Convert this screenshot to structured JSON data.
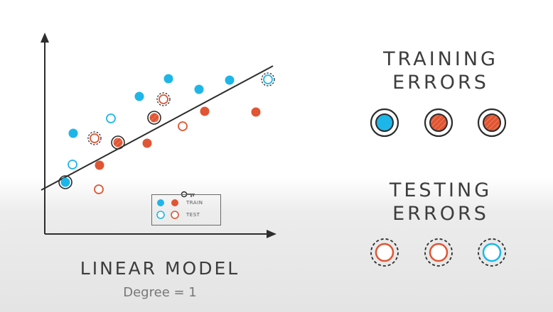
{
  "colors": {
    "train_point": "#1eb6e8",
    "test_point": "#e05533",
    "outline": "#2c2c2c",
    "axis": "#2d2d2d"
  },
  "diagram": {
    "title": "LINEAR MODEL",
    "subtitle": "Degree = 1",
    "legend": {
      "train": "TRAIN",
      "test": "TEST"
    }
  },
  "training_errors": {
    "heading_line1": "TRAINING",
    "heading_line2": "ERRORS",
    "icons": [
      "filled-blue-circle-icon",
      "filled-striped-red-circle-icon",
      "filled-striped-red-circle-icon"
    ]
  },
  "testing_errors": {
    "heading_line1": "TESTING",
    "heading_line2": "ERRORS",
    "icons": [
      "hollow-red-dashed-circle-icon",
      "hollow-red-dashed-circle-icon",
      "hollow-blue-dashed-circle-icon"
    ]
  }
}
